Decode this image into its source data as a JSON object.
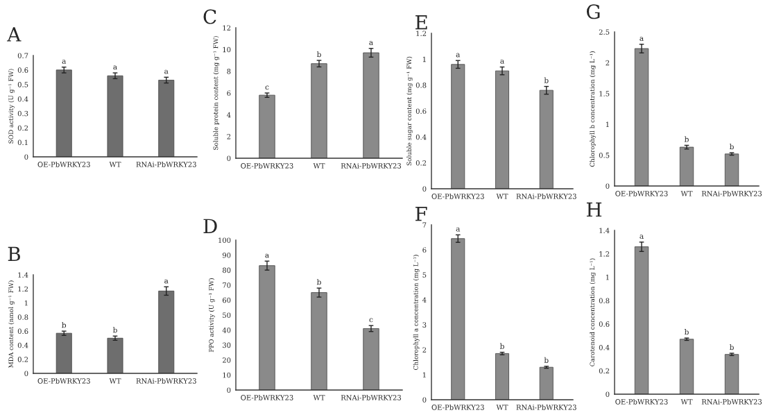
{
  "chart_data": [
    {
      "type": "bar",
      "title": "A",
      "ylabel": "SOD activity (U g⁻¹ FW)",
      "categories": [
        "OE-PbWRKY23",
        "WT",
        "RNAi-PbWRKY23"
      ],
      "values": [
        0.6,
        0.56,
        0.53
      ],
      "errors": [
        0.02,
        0.02,
        0.02
      ],
      "color": "#6e6e6e",
      "ylim": [
        0,
        0.7
      ],
      "yticks": [
        0,
        0.1,
        0.2,
        0.3,
        0.4,
        0.5,
        0.6,
        0.7
      ],
      "annotations": [
        {
          "text": "a",
          "x": "OE-PbWRKY23",
          "y": 0.62
        },
        {
          "text": "a",
          "x": "WT",
          "y": 0.58
        },
        {
          "text": "a",
          "x": "RNAi-PbWRKY23",
          "y": 0.55
        }
      ]
    },
    {
      "type": "bar",
      "title": "B",
      "ylabel": "MDA content (nmol g⁻¹ FW)",
      "categories": [
        "OE-PbWRKY23",
        "WT",
        "RNAi-PbWRKY23"
      ],
      "values": [
        0.57,
        0.5,
        1.17
      ],
      "errors": [
        0.03,
        0.03,
        0.06
      ],
      "color": "#6e6e6e",
      "ylim": [
        0,
        1.4
      ],
      "yticks": [
        0,
        0.2,
        0.4,
        0.6,
        0.8,
        1,
        1.2,
        1.4
      ],
      "annotations": [
        {
          "text": "b",
          "x": "OE-PbWRKY23",
          "y": 0.6
        },
        {
          "text": "b",
          "x": "WT",
          "y": 0.53
        },
        {
          "text": "a",
          "x": "RNAi-PbWRKY23",
          "y": 1.23
        }
      ]
    },
    {
      "type": "bar",
      "title": "C",
      "ylabel": "Soluble protein content (mg g⁻¹ FW)",
      "categories": [
        "OE-PbWRKY23",
        "WT",
        "RNAi-PbWRKY23"
      ],
      "values": [
        5.8,
        8.7,
        9.7
      ],
      "errors": [
        0.2,
        0.3,
        0.4
      ],
      "color": "#8a8a8a",
      "ylim": [
        0,
        12
      ],
      "yticks": [
        0,
        2,
        4,
        6,
        8,
        10,
        12
      ],
      "annotations": [
        {
          "text": "c",
          "x": "OE-PbWRKY23",
          "y": 6.0
        },
        {
          "text": "b",
          "x": "WT",
          "y": 9.0
        },
        {
          "text": "a",
          "x": "RNAi-PbWRKY23",
          "y": 10.1
        }
      ]
    },
    {
      "type": "bar",
      "title": "D",
      "ylabel": "PPO activity (U g⁻¹ FW)",
      "categories": [
        "OE-PbWRKY23",
        "WT",
        "RNAi-PbWRKY23"
      ],
      "values": [
        83,
        65,
        41
      ],
      "errors": [
        3,
        3,
        2
      ],
      "color": "#8a8a8a",
      "ylim": [
        0,
        100
      ],
      "yticks": [
        0,
        10,
        20,
        30,
        40,
        50,
        60,
        70,
        80,
        90,
        100
      ],
      "annotations": [
        {
          "text": "a",
          "x": "OE-PbWRKY23",
          "y": 86
        },
        {
          "text": "b",
          "x": "WT",
          "y": 68
        },
        {
          "text": "c",
          "x": "RNAi-PbWRKY23",
          "y": 43
        }
      ]
    },
    {
      "type": "bar",
      "title": "E",
      "ylabel": "Soluble sugar content (mg g⁻¹ FW)",
      "categories": [
        "OE-PbWRKY23",
        "WT",
        "RNAi-PbWRKY23"
      ],
      "values": [
        0.96,
        0.91,
        0.76
      ],
      "errors": [
        0.03,
        0.03,
        0.03
      ],
      "color": "#8a8a8a",
      "ylim": [
        0,
        1.2
      ],
      "yticks": [
        0,
        0.2,
        0.4,
        0.6,
        0.8,
        1,
        1.2
      ],
      "annotations": [
        {
          "text": "a",
          "x": "OE-PbWRKY23",
          "y": 0.99
        },
        {
          "text": "a",
          "x": "WT",
          "y": 0.94
        },
        {
          "text": "b",
          "x": "RNAi-PbWRKY23",
          "y": 0.79
        }
      ]
    },
    {
      "type": "bar",
      "title": "F",
      "ylabel": "Chlorophyll a concentration (mg L⁻¹)",
      "categories": [
        "OE-PbWRKY23",
        "WT",
        "RNAi-PbWRKY23"
      ],
      "values": [
        6.45,
        1.85,
        1.3
      ],
      "errors": [
        0.15,
        0.05,
        0.04
      ],
      "color": "#8a8a8a",
      "ylim": [
        0,
        7
      ],
      "yticks": [
        0,
        1,
        2,
        3,
        4,
        5,
        6,
        7
      ],
      "annotations": [
        {
          "text": "a",
          "x": "OE-PbWRKY23",
          "y": 6.6
        },
        {
          "text": "b",
          "x": "WT",
          "y": 1.9
        },
        {
          "text": "b",
          "x": "RNAi-PbWRKY23",
          "y": 1.34
        }
      ]
    },
    {
      "type": "bar",
      "title": "G",
      "ylabel": "Chlorophyll b concentration (mg L⁻¹)",
      "categories": [
        "OE-PbWRKY23",
        "WT",
        "RNAi-PbWRKY23"
      ],
      "values": [
        2.23,
        0.63,
        0.52
      ],
      "errors": [
        0.07,
        0.03,
        0.02
      ],
      "color": "#8a8a8a",
      "ylim": [
        0,
        2.5
      ],
      "yticks": [
        0,
        0.5,
        1,
        1.5,
        2,
        2.5
      ],
      "annotations": [
        {
          "text": "a",
          "x": "OE-PbWRKY23",
          "y": 2.3
        },
        {
          "text": "b",
          "x": "WT",
          "y": 0.66
        },
        {
          "text": "b",
          "x": "RNAi-PbWRKY23",
          "y": 0.54
        }
      ]
    },
    {
      "type": "bar",
      "title": "H",
      "ylabel": "Carotenoid concentration (mg L⁻¹)",
      "categories": [
        "OE-PbWRKY23",
        "WT",
        "RNAi-PbWRKY23"
      ],
      "values": [
        1.26,
        0.47,
        0.34
      ],
      "errors": [
        0.04,
        0.01,
        0.01
      ],
      "color": "#8a8a8a",
      "ylim": [
        0,
        1.4
      ],
      "yticks": [
        0,
        0.2,
        0.4,
        0.6,
        0.8,
        1,
        1.2,
        1.4
      ],
      "annotations": [
        {
          "text": "a",
          "x": "OE-PbWRKY23",
          "y": 1.3
        },
        {
          "text": "b",
          "x": "WT",
          "y": 0.48
        },
        {
          "text": "b",
          "x": "RNAi-PbWRKY23",
          "y": 0.35
        }
      ]
    }
  ]
}
